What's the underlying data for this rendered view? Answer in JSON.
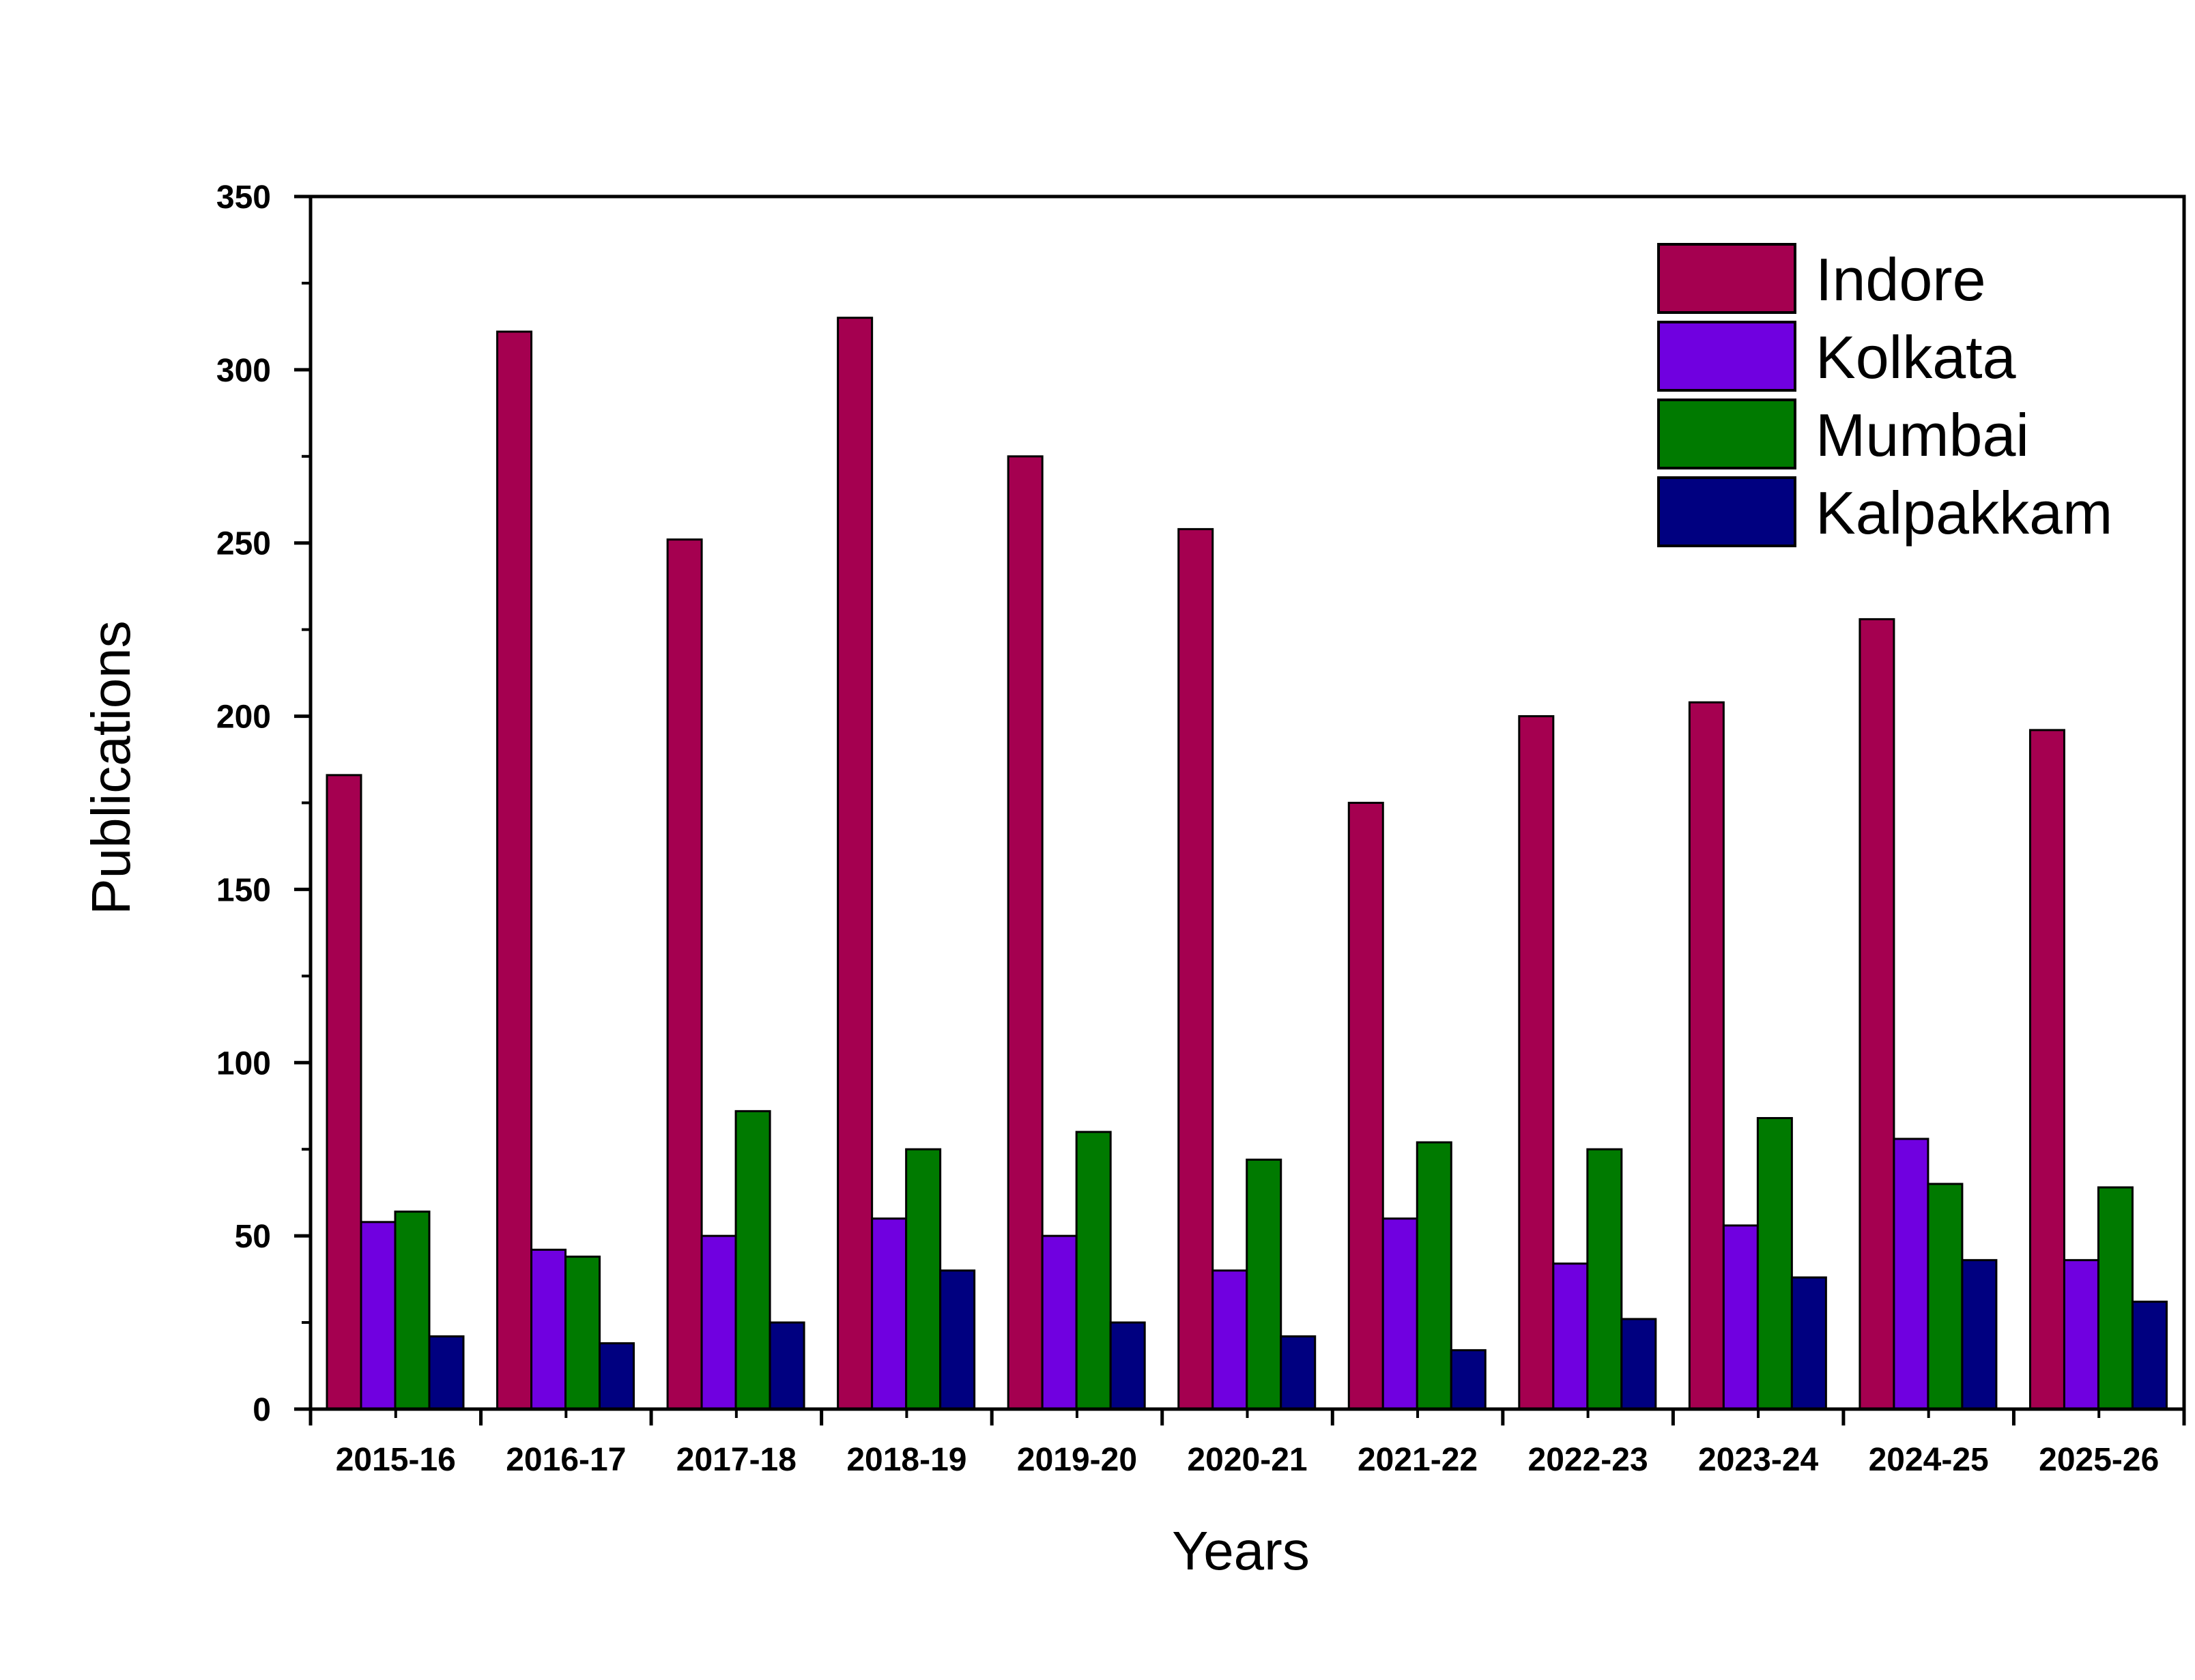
{
  "chart_data": {
    "type": "bar",
    "title": "",
    "xlabel": "Years",
    "ylabel": "Publications",
    "ylim": [
      0,
      350
    ],
    "yticks": [
      0,
      50,
      100,
      150,
      200,
      250,
      300,
      350
    ],
    "categories": [
      "2015-16",
      "2016-17",
      "2017-18",
      "2018-19",
      "2019-20",
      "2020-21",
      "2021-22",
      "2022-23",
      "2023-24",
      "2024-25",
      "2025-26"
    ],
    "series": [
      {
        "name": "Indore",
        "color": "#A50050",
        "values": [
          183,
          311,
          251,
          315,
          275,
          254,
          175,
          200,
          204,
          228,
          196
        ]
      },
      {
        "name": "Kolkata",
        "color": "#7000E0",
        "values": [
          54,
          46,
          50,
          55,
          50,
          40,
          55,
          42,
          53,
          78,
          43
        ]
      },
      {
        "name": "Mumbai",
        "color": "#007A00",
        "values": [
          57,
          44,
          86,
          75,
          80,
          72,
          77,
          75,
          84,
          65,
          64
        ]
      },
      {
        "name": "Kalpakkam",
        "color": "#000080",
        "values": [
          21,
          19,
          25,
          40,
          25,
          21,
          17,
          26,
          38,
          43,
          31
        ]
      }
    ],
    "grid": false,
    "legend_position": "top-right"
  }
}
